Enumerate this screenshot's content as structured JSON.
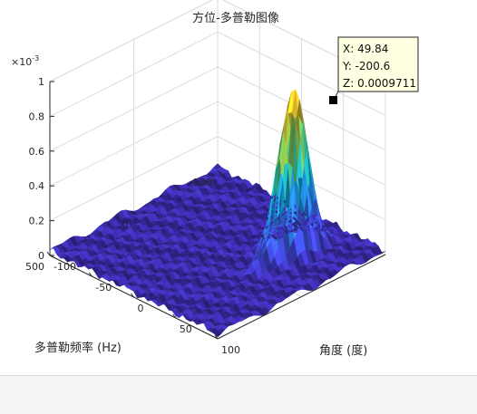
{
  "chart_data": {
    "type": "surface",
    "title": "方位-多普勒图像",
    "xlabel": "角度 (度)",
    "ylabel": "多普勒频率 (Hz)",
    "zlabel": "",
    "z_exponent_label": "×10",
    "z_exponent_power": "-3",
    "xlim": [
      -100,
      100
    ],
    "ylim": [
      -500,
      500
    ],
    "zlim": [
      0,
      0.001
    ],
    "x_ticks": [
      -100,
      -50,
      0,
      50,
      100
    ],
    "y_ticks": [
      -500,
      0,
      500
    ],
    "z_ticks": [
      0,
      0.0002,
      0.0004,
      0.0006,
      0.0008,
      0.001
    ],
    "x_tick_labels": [
      "-100",
      "-50",
      "0",
      "50",
      "100"
    ],
    "y_tick_labels": [
      "-500",
      "0",
      "500"
    ],
    "z_tick_labels": [
      "0",
      "0.2",
      "0.4",
      "0.6",
      "0.8",
      "1"
    ],
    "grid": true,
    "colormap": "parula",
    "peak": {
      "x": 49.84,
      "y": -200.6,
      "z": 0.0009711
    },
    "noise_floor_z": 3e-05,
    "datatip": {
      "x_label": "X: 49.84",
      "y_label": "Y: -200.6",
      "z_label": "Z: 0.0009711"
    }
  }
}
